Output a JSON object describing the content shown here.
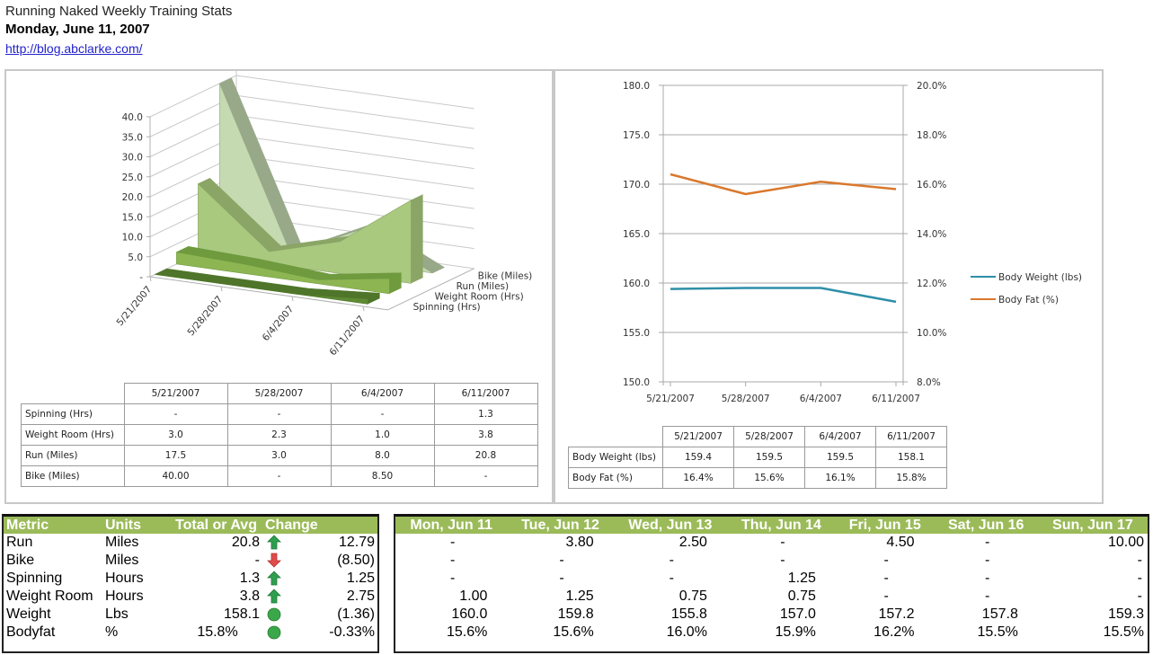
{
  "header": {
    "title": "Running Naked Weekly Training Stats",
    "date": "Monday, June 11, 2007",
    "link": "http://blog.abclarke.com/"
  },
  "colors": {
    "summary_header": "#9bbb59",
    "up_arrow": "#2e9e4f",
    "down_arrow": "#e04b4b",
    "neutral_circle": "#3aa84a",
    "body_weight_line": "#2e8fa8",
    "body_fat_line": "#d9782d"
  },
  "chart_data": [
    {
      "type": "area",
      "subtype": "3d-area",
      "title": "",
      "categories": [
        "5/21/2007",
        "5/28/2007",
        "6/4/2007",
        "6/11/2007"
      ],
      "series": [
        {
          "name": "Bike (Miles)",
          "values": [
            40.0,
            0,
            8.5,
            0
          ],
          "color": "#c5dab0"
        },
        {
          "name": "Run (Miles)",
          "values": [
            17.5,
            3.0,
            8.0,
            20.8
          ],
          "color": "#a9c97f"
        },
        {
          "name": "Weight Room (Hrs)",
          "values": [
            3.0,
            2.3,
            1.0,
            3.8
          ],
          "color": "#8db653"
        },
        {
          "name": "Spinning (Hrs)",
          "values": [
            0,
            0,
            0,
            1.3
          ],
          "color": "#5f8a34"
        }
      ],
      "y_ticks": [
        "-",
        "5.0",
        "10.0",
        "15.0",
        "20.0",
        "25.0",
        "30.0",
        "35.0",
        "40.0"
      ],
      "ylim": [
        0,
        40
      ],
      "grid": true,
      "legend": "depth-axis-right",
      "table": {
        "columns": [
          "5/21/2007",
          "5/28/2007",
          "6/4/2007",
          "6/11/2007"
        ],
        "rows": [
          {
            "label": "Spinning (Hrs)",
            "cells": [
              "-",
              "-",
              "-",
              "1.3"
            ]
          },
          {
            "label": "Weight Room (Hrs)",
            "cells": [
              "3.0",
              "2.3",
              "1.0",
              "3.8"
            ]
          },
          {
            "label": "Run (Miles)",
            "cells": [
              "17.5",
              "3.0",
              "8.0",
              "20.8"
            ]
          },
          {
            "label": "Bike (Miles)",
            "cells": [
              "40.00",
              "-",
              "8.50",
              "-"
            ]
          }
        ]
      }
    },
    {
      "type": "line",
      "title": "",
      "categories": [
        "5/21/2007",
        "5/28/2007",
        "6/4/2007",
        "6/11/2007"
      ],
      "series": [
        {
          "name": "Body Weight (lbs)",
          "axis": "left",
          "values": [
            159.4,
            159.5,
            159.5,
            158.1
          ],
          "color": "#2e8fa8"
        },
        {
          "name": "Body Fat (%)",
          "axis": "right",
          "values": [
            16.4,
            15.6,
            16.1,
            15.8
          ],
          "color": "#d9782d"
        }
      ],
      "y_left_ticks": [
        "150.0",
        "155.0",
        "160.0",
        "165.0",
        "170.0",
        "175.0",
        "180.0"
      ],
      "y_left_lim": [
        150,
        180
      ],
      "y_right_ticks": [
        "8.0%",
        "10.0%",
        "12.0%",
        "14.0%",
        "16.0%",
        "18.0%",
        "20.0%"
      ],
      "y_right_lim": [
        8,
        20
      ],
      "grid": true,
      "legend": "right",
      "table": {
        "columns": [
          "5/21/2007",
          "5/28/2007",
          "6/4/2007",
          "6/11/2007"
        ],
        "rows": [
          {
            "label": "Body Weight (lbs)",
            "cells": [
              "159.4",
              "159.5",
              "159.5",
              "158.1"
            ]
          },
          {
            "label": "Body Fat (%)",
            "cells": [
              "16.4%",
              "15.6%",
              "16.1%",
              "15.8%"
            ]
          }
        ]
      }
    }
  ],
  "summary": {
    "columns": [
      "Metric",
      "Units",
      "Total or Avg",
      "Change"
    ],
    "rows": [
      {
        "metric": "Run",
        "units": "Miles",
        "total": "20.8",
        "indicator": "up-arrow",
        "change": "12.79"
      },
      {
        "metric": "Bike",
        "units": "Miles",
        "total": "-",
        "indicator": "down-arrow",
        "change": "(8.50)"
      },
      {
        "metric": "Spinning",
        "units": "Hours",
        "total": "1.3",
        "indicator": "up-arrow",
        "change": "1.25"
      },
      {
        "metric": "Weight Room",
        "units": "Hours",
        "total": "3.8",
        "indicator": "up-arrow",
        "change": "2.75"
      },
      {
        "metric": "Weight",
        "units": "Lbs",
        "total": "158.1",
        "indicator": "neutral-circle",
        "change": "(1.36)"
      },
      {
        "metric": "Bodyfat",
        "units": "%",
        "total": "15.8%",
        "indicator": "neutral-circle",
        "change": "-0.33%"
      }
    ]
  },
  "daily": {
    "columns": [
      "Mon, Jun 11",
      "Tue, Jun 12",
      "Wed, Jun 13",
      "Thu, Jun 14",
      "Fri, Jun 15",
      "Sat, Jun 16",
      "Sun, Jun 17"
    ],
    "rows": [
      [
        "-",
        "3.80",
        "2.50",
        "-",
        "4.50",
        "-",
        "10.00"
      ],
      [
        "-",
        "-",
        "-",
        "-",
        "-",
        "-",
        "-"
      ],
      [
        "-",
        "-",
        "-",
        "1.25",
        "-",
        "-",
        "-"
      ],
      [
        "1.00",
        "1.25",
        "0.75",
        "0.75",
        "-",
        "-",
        "-"
      ],
      [
        "160.0",
        "159.8",
        "155.8",
        "157.0",
        "157.2",
        "157.8",
        "159.3"
      ],
      [
        "15.6%",
        "15.6%",
        "16.0%",
        "15.9%",
        "16.2%",
        "15.5%",
        "15.5%"
      ]
    ]
  }
}
